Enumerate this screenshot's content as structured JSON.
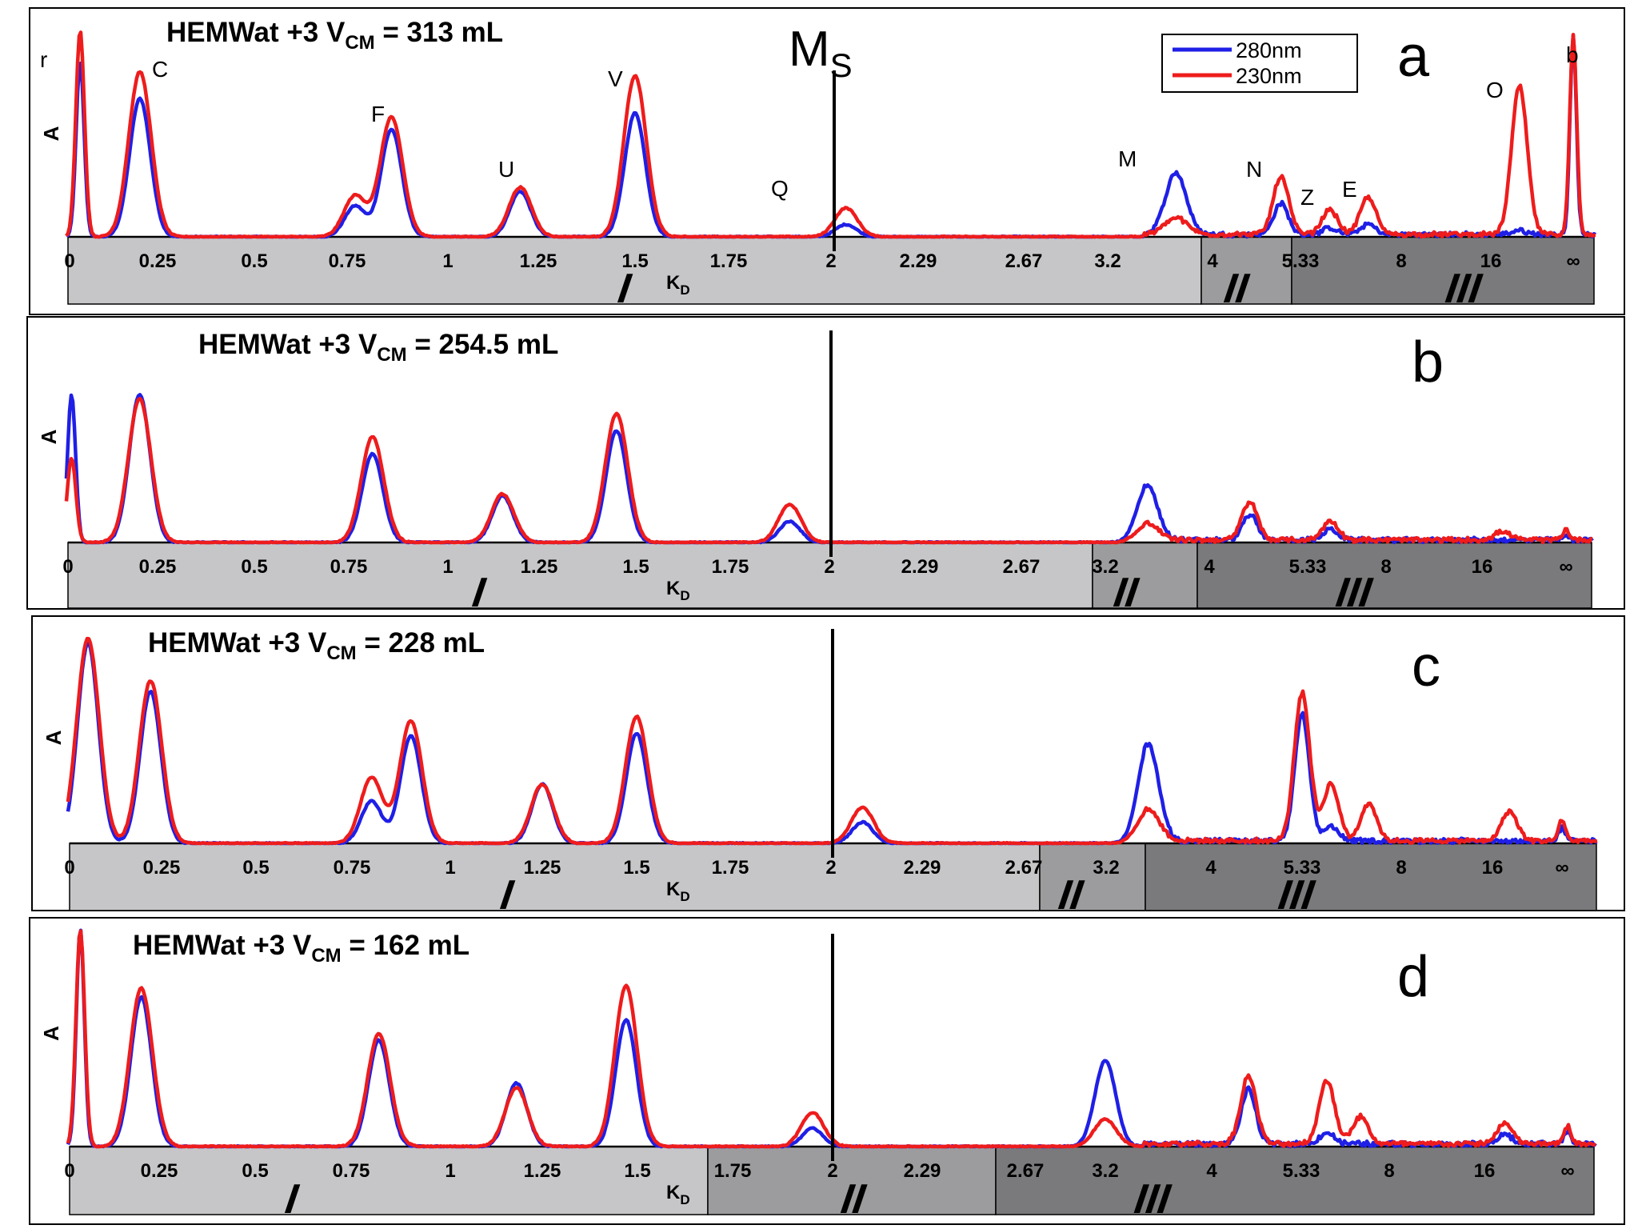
{
  "legend": {
    "entries": [
      {
        "label": "280nm",
        "color": "#1f1fe6"
      },
      {
        "label": "230nm",
        "color": "#ee1c1c"
      }
    ]
  },
  "ms_label": {
    "main": "M",
    "sub": "S"
  },
  "kd_label": {
    "main": "K",
    "sub": "D"
  },
  "ylabel": "A",
  "region_labels": [
    "I",
    "II",
    "III"
  ],
  "colors": {
    "s280": "#1f1fe6",
    "s230": "#ee1c1c",
    "region_I": "#c6c6c8",
    "region_II": "#9c9c9e",
    "region_III": "#7a7a7c"
  },
  "chart_data": [
    {
      "type": "line",
      "panel_letter": "a",
      "title": {
        "prefix": "HEMWat +3 V",
        "sub": "CM",
        "suffix": " = 313 mL"
      },
      "x_ticks": [
        "0",
        "0.25",
        "0.5",
        "0.75",
        "1",
        "1.25",
        "1.5",
        "1.75",
        "2",
        "2.29",
        "2.67",
        "3.2",
        "4",
        "5.33",
        "8",
        "16",
        "∞"
      ],
      "regions": {
        "I": [
          0,
          4
        ],
        "II": [
          4,
          5.33
        ],
        "III": [
          5.33,
          "∞"
        ]
      },
      "ms_kd": 2,
      "peak_labels": [
        {
          "text": "r",
          "kd": "near 0"
        },
        {
          "text": "C",
          "kd": 0.2
        },
        {
          "text": "F",
          "kd": 0.85
        },
        {
          "text": "U",
          "kd": 1.2
        },
        {
          "text": "V",
          "kd": 1.5
        },
        {
          "text": "Q",
          "kd": 1.9
        },
        {
          "text": "M",
          "kd": 3.6
        },
        {
          "text": "N",
          "kd": 5.0
        },
        {
          "text": "Z",
          "kd": 6.0
        },
        {
          "text": "E",
          "kd": 7.0
        },
        {
          "text": "O",
          "kd": 22
        },
        {
          "text": "b",
          "kd": "∞"
        }
      ],
      "series": [
        {
          "name": "280nm",
          "peaks_kd_height": [
            [
              0.03,
              0.85
            ],
            [
              0.2,
              0.67
            ],
            [
              0.77,
              0.15
            ],
            [
              0.86,
              0.52
            ],
            [
              1.2,
              0.22
            ],
            [
              1.5,
              0.6
            ],
            [
              2.05,
              0.06
            ],
            [
              3.7,
              0.3
            ],
            [
              5.0,
              0.15
            ],
            [
              6.0,
              0.03
            ],
            [
              7.0,
              0.05
            ],
            [
              22,
              0.02
            ],
            [
              "∞",
              0.96
            ]
          ]
        },
        {
          "name": "230nm",
          "peaks_kd_height": [
            [
              0.03,
              1.0
            ],
            [
              0.2,
              0.8
            ],
            [
              0.77,
              0.2
            ],
            [
              0.86,
              0.58
            ],
            [
              1.2,
              0.24
            ],
            [
              1.5,
              0.78
            ],
            [
              2.05,
              0.14
            ],
            [
              3.7,
              0.08
            ],
            [
              5.0,
              0.28
            ],
            [
              6.0,
              0.12
            ],
            [
              7.0,
              0.18
            ],
            [
              22,
              0.72
            ],
            [
              "∞",
              0.96
            ]
          ]
        }
      ]
    },
    {
      "type": "line",
      "panel_letter": "b",
      "title": {
        "prefix": "HEMWat +3 V",
        "sub": "CM",
        "suffix": " = 254.5 mL"
      },
      "x_ticks": [
        "0",
        "0.25",
        "0.5",
        "0.75",
        "1",
        "1.25",
        "1.5",
        "1.75",
        "2",
        "2.29",
        "2.67",
        "3.2",
        "4",
        "5.33",
        "8",
        "16",
        "∞"
      ],
      "regions": {
        "I": [
          0,
          3.2
        ],
        "II": [
          3.2,
          4
        ],
        "III": [
          4,
          "∞"
        ]
      },
      "ms_kd": 2,
      "series": [
        {
          "name": "280nm",
          "peaks_kd_height": [
            [
              0.01,
              0.7
            ],
            [
              0.2,
              0.7
            ],
            [
              0.81,
              0.42
            ],
            [
              1.15,
              0.22
            ],
            [
              1.45,
              0.53
            ],
            [
              1.9,
              0.1
            ],
            [
              3.5,
              0.26
            ],
            [
              4.5,
              0.12
            ],
            [
              6.0,
              0.05
            ],
            [
              "∞",
              0.02
            ]
          ]
        },
        {
          "name": "230nm",
          "peaks_kd_height": [
            [
              0.01,
              0.4
            ],
            [
              0.2,
              0.68
            ],
            [
              0.81,
              0.5
            ],
            [
              1.15,
              0.23
            ],
            [
              1.45,
              0.61
            ],
            [
              1.9,
              0.18
            ],
            [
              3.5,
              0.08
            ],
            [
              4.5,
              0.18
            ],
            [
              6.0,
              0.09
            ],
            [
              20,
              0.04
            ],
            [
              "∞",
              0.05
            ]
          ]
        }
      ]
    },
    {
      "type": "line",
      "panel_letter": "c",
      "title": {
        "prefix": "HEMWat +3 V",
        "sub": "CM",
        "suffix": " = 228 mL"
      },
      "x_ticks": [
        "0",
        "0.25",
        "0.5",
        "0.75",
        "1",
        "1.25",
        "1.5",
        "1.75",
        "2",
        "2.29",
        "2.67",
        "3.2",
        "4",
        "5.33",
        "8",
        "16",
        "∞"
      ],
      "regions": {
        "I": [
          0,
          2.67
        ],
        "II": [
          2.67,
          3.5
        ],
        "III": [
          3.5,
          "∞"
        ]
      },
      "ms_kd": 2,
      "series": [
        {
          "name": "280nm",
          "peaks_kd_height": [
            [
              0.05,
              0.95
            ],
            [
              0.22,
              0.72
            ],
            [
              0.8,
              0.2
            ],
            [
              0.9,
              0.51
            ],
            [
              1.25,
              0.28
            ],
            [
              1.5,
              0.52
            ],
            [
              2.1,
              0.1
            ],
            [
              3.5,
              0.46
            ],
            [
              5.33,
              0.6
            ],
            [
              6.0,
              0.07
            ],
            [
              "∞",
              0.06
            ]
          ]
        },
        {
          "name": "230nm",
          "peaks_kd_height": [
            [
              0.05,
              0.97
            ],
            [
              0.22,
              0.77
            ],
            [
              0.8,
              0.31
            ],
            [
              0.9,
              0.58
            ],
            [
              1.25,
              0.28
            ],
            [
              1.5,
              0.6
            ],
            [
              2.1,
              0.17
            ],
            [
              3.5,
              0.15
            ],
            [
              5.33,
              0.7
            ],
            [
              6.0,
              0.27
            ],
            [
              7.0,
              0.18
            ],
            [
              20,
              0.14
            ],
            [
              "∞",
              0.1
            ]
          ]
        }
      ]
    },
    {
      "type": "line",
      "panel_letter": "d",
      "title": {
        "prefix": "HEMWat +3 V",
        "sub": "CM",
        "suffix": " = 162 mL"
      },
      "x_ticks": [
        "0",
        "0.25",
        "0.5",
        "0.75",
        "1",
        "1.25",
        "1.5",
        "1.75",
        "2",
        "2.29",
        "2.67",
        "3.2",
        "4",
        "5.33",
        "8",
        "16",
        "∞"
      ],
      "regions": {
        "I": [
          0,
          1.75
        ],
        "II": [
          1.75,
          2.67
        ],
        "III": [
          2.67,
          "∞"
        ]
      },
      "ms_kd": 2,
      "series": [
        {
          "name": "280nm",
          "peaks_kd_height": [
            [
              0.03,
              0.96
            ],
            [
              0.2,
              0.66
            ],
            [
              0.82,
              0.47
            ],
            [
              1.18,
              0.28
            ],
            [
              1.47,
              0.56
            ],
            [
              1.95,
              0.08
            ],
            [
              3.2,
              0.38
            ],
            [
              4.5,
              0.24
            ],
            [
              6.0,
              0.05
            ],
            [
              20,
              0.04
            ],
            [
              "∞",
              0.06
            ]
          ]
        },
        {
          "name": "230nm",
          "peaks_kd_height": [
            [
              0.03,
              0.96
            ],
            [
              0.2,
              0.7
            ],
            [
              0.82,
              0.5
            ],
            [
              1.18,
              0.26
            ],
            [
              1.47,
              0.71
            ],
            [
              1.95,
              0.15
            ],
            [
              3.2,
              0.12
            ],
            [
              4.5,
              0.3
            ],
            [
              6.0,
              0.28
            ],
            [
              7.0,
              0.12
            ],
            [
              20,
              0.09
            ],
            [
              "∞",
              0.08
            ]
          ]
        }
      ]
    }
  ]
}
